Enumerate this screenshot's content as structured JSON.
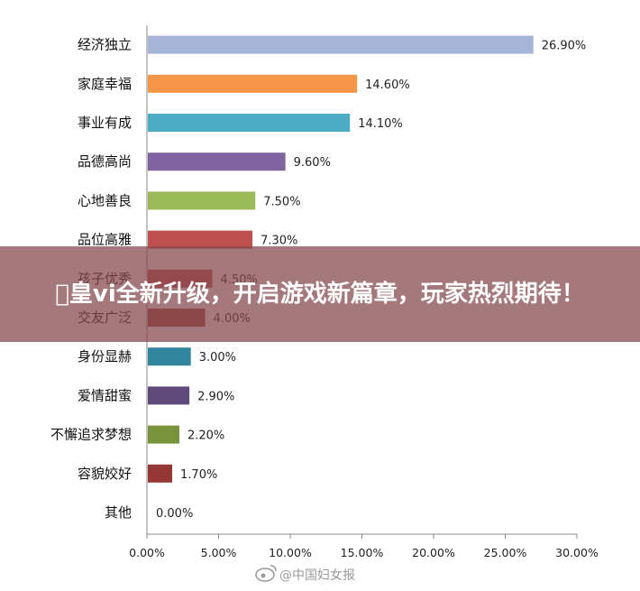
{
  "banner": {
    "title": "\u0000皇vi全新升级，开启游戏新篇章，玩家热烈期待！"
  },
  "watermark": {
    "text": "@中国妇女报"
  },
  "chart_data": {
    "type": "bar",
    "orientation": "horizontal",
    "categories": [
      "经济独立",
      "家庭幸福",
      "事业有成",
      "品德高尚",
      "心地善良",
      "品位高雅",
      "孩子优秀",
      "交友广泛",
      "身份显赫",
      "爱情甜蜜",
      "不懈追求梦想",
      "容貌姣好",
      "其他"
    ],
    "values": [
      26.9,
      14.6,
      14.1,
      9.6,
      7.5,
      7.3,
      4.5,
      4.0,
      3.0,
      2.9,
      2.2,
      1.7,
      0.0
    ],
    "value_labels": [
      "26.90%",
      "14.60%",
      "14.10%",
      "9.60%",
      "7.50%",
      "7.30%",
      "4.50%",
      "4.00%",
      "3.00%",
      "2.90%",
      "2.20%",
      "1.70%",
      "0.00%"
    ],
    "colors": [
      "#a6b4d8",
      "#f79646",
      "#4bacc6",
      "#8064a2",
      "#9bbb59",
      "#c0504d",
      "#c0504d",
      "#a0483e",
      "#31859c",
      "#604a7b",
      "#77933c",
      "#953735",
      "#4f81bd"
    ],
    "xlim": [
      0,
      30
    ],
    "x_ticks": [
      0,
      5,
      10,
      15,
      20,
      25,
      30
    ],
    "x_tick_labels": [
      "0.00%",
      "5.00%",
      "10.00%",
      "15.00%",
      "20.00%",
      "25.00%",
      "30.00%"
    ],
    "title": "",
    "xlabel": "",
    "ylabel": "",
    "grid": false,
    "legend": "none"
  }
}
